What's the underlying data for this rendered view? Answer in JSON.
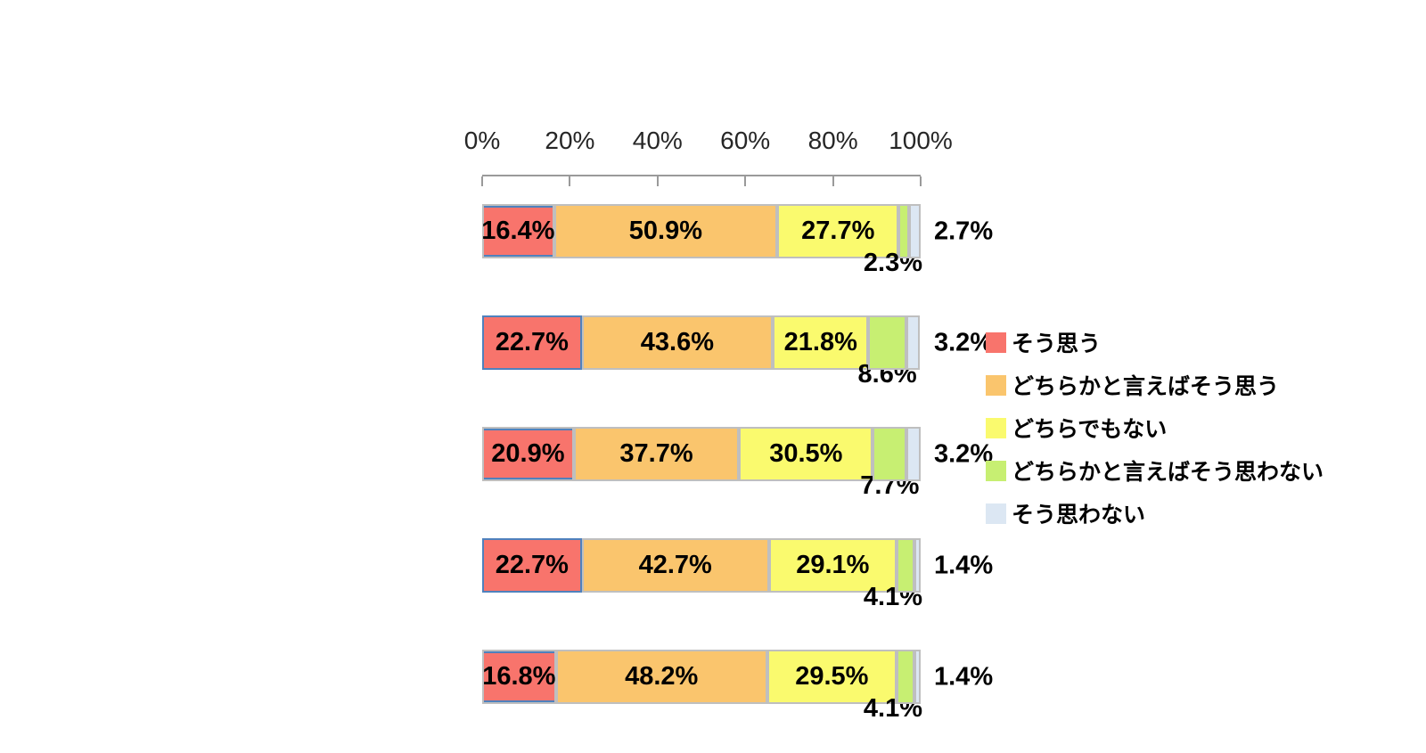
{
  "chart_data": {
    "type": "bar",
    "orientation": "horizontal",
    "stacked": true,
    "title": "",
    "unit": "%",
    "x_axis": {
      "position": "top",
      "min": 0,
      "max": 100,
      "ticks": [
        "0%",
        "20%",
        "40%",
        "60%",
        "80%",
        "100%"
      ]
    },
    "n_rows": 5,
    "series": [
      {
        "name": "そう思う",
        "color": "#F8746C",
        "values": [
          16.4,
          22.7,
          20.9,
          22.7,
          16.8
        ]
      },
      {
        "name": "どちらかと言えばそう思う",
        "color": "#FAC56D",
        "values": [
          50.9,
          43.6,
          37.7,
          42.7,
          48.2
        ]
      },
      {
        "name": "どちらでもない",
        "color": "#FAFA6E",
        "values": [
          27.7,
          21.8,
          30.5,
          29.1,
          29.5
        ]
      },
      {
        "name": "どちらかと言えばそう思わない",
        "color": "#C7EF72",
        "values": [
          2.3,
          8.6,
          7.7,
          4.1,
          4.1
        ]
      },
      {
        "name": "そう思わない",
        "color": "#DCE7F3",
        "values": [
          2.7,
          3.2,
          3.2,
          1.4,
          1.4
        ]
      }
    ],
    "value_labels": [
      [
        "16.4%",
        "50.9%",
        "27.7%",
        "2.3%",
        "2.7%"
      ],
      [
        "22.7%",
        "43.6%",
        "21.8%",
        "8.6%",
        "3.2%"
      ],
      [
        "20.9%",
        "37.7%",
        "30.5%",
        "7.7%",
        "3.2%"
      ],
      [
        "22.7%",
        "42.7%",
        "29.1%",
        "4.1%",
        "1.4%"
      ],
      [
        "16.8%",
        "48.2%",
        "29.5%",
        "4.1%",
        "1.4%"
      ]
    ],
    "legend": {
      "position": "right",
      "entries": [
        "そう思う",
        "どちらかと言えばそう思う",
        "どちらでもない",
        "どちらかと言えばそう思わない",
        "そう思わない"
      ]
    },
    "grid": false
  }
}
